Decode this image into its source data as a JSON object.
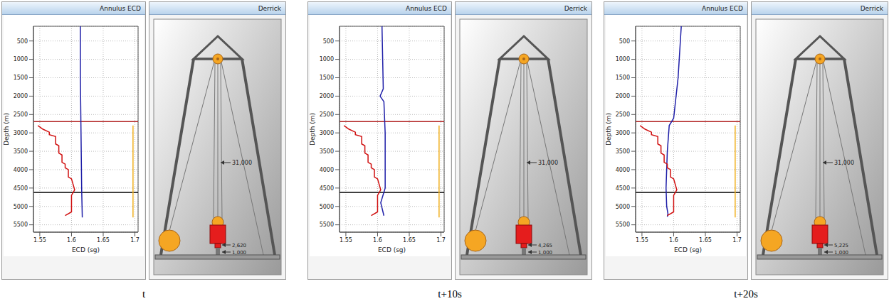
{
  "chart_data": [
    {
      "type": "line",
      "title": "Annulus ECD",
      "x_label": "ECD (sg)",
      "y_label": "Depth (m)",
      "xlim": [
        1.54,
        1.705
      ],
      "ylim": [
        100,
        5700
      ],
      "xticks": [
        1.55,
        1.6,
        1.65,
        1.7
      ],
      "yticks": [
        500,
        1000,
        1500,
        2000,
        2500,
        3000,
        3500,
        4000,
        4500,
        5000,
        5500
      ],
      "grid": true,
      "series": [
        {
          "color": "#1f1fa8",
          "x": [
            1.614,
            1.614,
            1.615,
            1.616,
            1.617
          ],
          "y": [
            100,
            1500,
            3000,
            4500,
            5300
          ]
        },
        {
          "color": "#d01010",
          "x": [
            1.547,
            1.555,
            1.565,
            1.565,
            1.575,
            1.575,
            1.58,
            1.58,
            1.585,
            1.585,
            1.59,
            1.59,
            1.595,
            1.595,
            1.6,
            1.605,
            1.6,
            1.6,
            1.59
          ],
          "y": [
            2800,
            2900,
            2980,
            3050,
            3100,
            3300,
            3350,
            3550,
            3600,
            3800,
            3850,
            3950,
            4000,
            4200,
            4250,
            4550,
            4700,
            5150,
            5250
          ]
        },
        {
          "color": "#f0b020",
          "x": [
            1.697,
            1.697
          ],
          "y": [
            2800,
            5300
          ]
        }
      ],
      "hlines": [
        {
          "y": 2690,
          "color": "#b22222"
        },
        {
          "y": 4620,
          "color": "#000000"
        }
      ]
    },
    {
      "type": "line",
      "title": "Annulus ECD",
      "x_label": "ECD (sg)",
      "y_label": "Depth (m)",
      "xlim": [
        1.54,
        1.705
      ],
      "ylim": [
        100,
        5700
      ],
      "xticks": [
        1.55,
        1.6,
        1.65,
        1.7
      ],
      "yticks": [
        500,
        1000,
        1500,
        2000,
        2500,
        3000,
        3500,
        4000,
        4500,
        5000,
        5500
      ],
      "grid": true,
      "series": [
        {
          "color": "#1f1fa8",
          "x": [
            1.607,
            1.609,
            1.604,
            1.61,
            1.612,
            1.612,
            1.605,
            1.61
          ],
          "y": [
            100,
            1800,
            2000,
            2150,
            3000,
            4500,
            4900,
            5250
          ]
        },
        {
          "color": "#d01010",
          "x": [
            1.547,
            1.555,
            1.565,
            1.565,
            1.575,
            1.575,
            1.58,
            1.58,
            1.585,
            1.585,
            1.59,
            1.59,
            1.595,
            1.595,
            1.6,
            1.605,
            1.6,
            1.6,
            1.59
          ],
          "y": [
            2800,
            2900,
            2980,
            3050,
            3100,
            3300,
            3350,
            3550,
            3600,
            3800,
            3850,
            3950,
            4000,
            4200,
            4250,
            4550,
            4700,
            5150,
            5250
          ]
        },
        {
          "color": "#f0b020",
          "x": [
            1.697,
            1.697
          ],
          "y": [
            2800,
            5300
          ]
        }
      ],
      "hlines": [
        {
          "y": 2690,
          "color": "#b22222"
        },
        {
          "y": 4620,
          "color": "#000000"
        }
      ]
    },
    {
      "type": "line",
      "title": "Annulus ECD",
      "x_label": "ECD (sg)",
      "y_label": "Depth (m)",
      "xlim": [
        1.54,
        1.705
      ],
      "ylim": [
        100,
        5700
      ],
      "xticks": [
        1.55,
        1.6,
        1.65,
        1.7
      ],
      "yticks": [
        500,
        1000,
        1500,
        2000,
        2500,
        3000,
        3500,
        4000,
        4500,
        5000,
        5500
      ],
      "grid": true,
      "series": [
        {
          "color": "#1f1fa8",
          "x": [
            1.612,
            1.607,
            1.6,
            1.593,
            1.59,
            1.588,
            1.589,
            1.591,
            1.59
          ],
          "y": [
            100,
            1500,
            2600,
            2800,
            3500,
            4500,
            5000,
            5200,
            5280
          ]
        },
        {
          "color": "#d01010",
          "x": [
            1.547,
            1.555,
            1.565,
            1.565,
            1.575,
            1.575,
            1.58,
            1.58,
            1.585,
            1.585,
            1.59,
            1.59,
            1.595,
            1.595,
            1.6,
            1.605,
            1.6,
            1.6,
            1.59
          ],
          "y": [
            2800,
            2900,
            2980,
            3050,
            3100,
            3300,
            3350,
            3550,
            3600,
            3800,
            3850,
            3950,
            4000,
            4200,
            4250,
            4550,
            4700,
            5150,
            5250
          ]
        },
        {
          "color": "#f0b020",
          "x": [
            1.697,
            1.697
          ],
          "y": [
            2800,
            5300
          ]
        }
      ],
      "hlines": [
        {
          "y": 2690,
          "color": "#b22222"
        },
        {
          "y": 4620,
          "color": "#000000"
        }
      ]
    }
  ],
  "derricks": [
    {
      "title": "Derrick",
      "hook_load": "31,000",
      "labels": [
        "2,620",
        "1,000"
      ]
    },
    {
      "title": "Derrick",
      "hook_load": "31,000",
      "labels": [
        "4,265",
        "1,000"
      ]
    },
    {
      "title": "Derrick",
      "hook_load": "31,000",
      "labels": [
        "5,225",
        "1,000"
      ]
    }
  ],
  "captions": [
    "t",
    "t+10s",
    "t+20s"
  ]
}
